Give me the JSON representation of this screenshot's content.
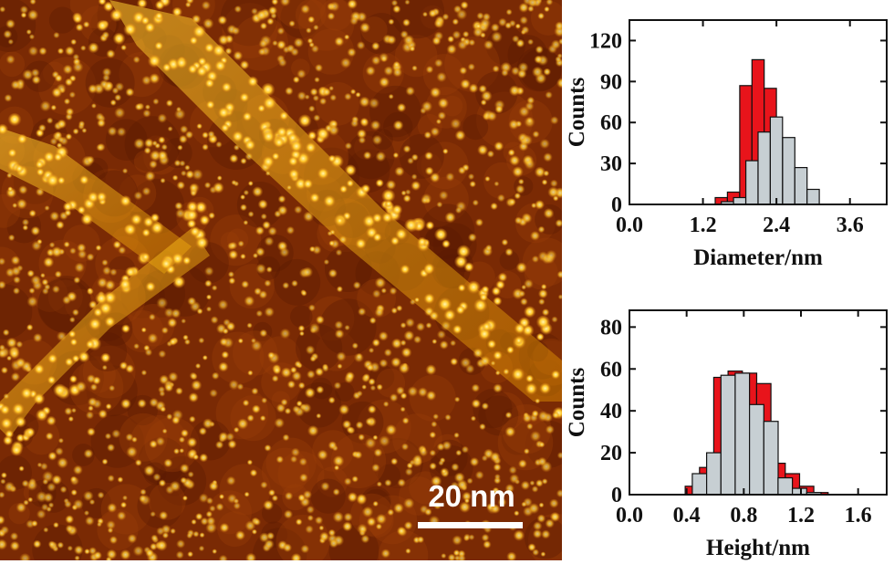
{
  "image": {
    "scale_bar_label": "20 nm",
    "colors": {
      "dark": "#4a1400",
      "mid": "#a0420a",
      "bright": "#ffd23c",
      "highlight": "#fff3a0"
    }
  },
  "chart_data": [
    {
      "type": "bar",
      "xlabel": "Diameter/nm",
      "ylabel": "Counts",
      "xlim": [
        0.0,
        4.2
      ],
      "ylim": [
        0,
        135
      ],
      "xticks": [
        "0.0",
        "1.2",
        "2.4",
        "3.6"
      ],
      "xtick_values": [
        0.0,
        1.2,
        2.4,
        3.6
      ],
      "yticks": [
        "0",
        "30",
        "60",
        "90",
        "120"
      ],
      "ytick_values": [
        0,
        30,
        60,
        90,
        120
      ],
      "bin_width": 0.2,
      "series": [
        {
          "color": "#e8141b",
          "x": [
            1.5,
            1.7,
            1.9,
            2.1,
            2.3,
            2.5
          ],
          "values": [
            5,
            9,
            87,
            106,
            85,
            34
          ]
        },
        {
          "color": "#c7cfd3",
          "x": [
            1.6,
            1.8,
            2.0,
            2.2,
            2.4,
            2.6,
            2.8,
            3.0
          ],
          "values": [
            2,
            5,
            32,
            53,
            64,
            49,
            27,
            11
          ]
        }
      ]
    },
    {
      "type": "bar",
      "xlabel": "Height/nm",
      "ylabel": "Counts",
      "xlim": [
        0.0,
        1.8
      ],
      "ylim": [
        0,
        88
      ],
      "xticks": [
        "0.0",
        "0.4",
        "0.8",
        "1.2",
        "1.6"
      ],
      "xtick_values": [
        0.0,
        0.4,
        0.8,
        1.2,
        1.6
      ],
      "yticks": [
        "0",
        "20",
        "40",
        "60",
        "80"
      ],
      "ytick_values": [
        0,
        20,
        40,
        60,
        80
      ],
      "bin_width": 0.1,
      "series": [
        {
          "color": "#e8141b",
          "x": [
            0.44,
            0.54,
            0.64,
            0.74,
            0.84,
            0.94,
            1.04,
            1.14,
            1.24,
            1.34
          ],
          "values": [
            4,
            13,
            56,
            59,
            58,
            53,
            15,
            10,
            4,
            1
          ]
        },
        {
          "color": "#c7cfd3",
          "x": [
            0.49,
            0.59,
            0.69,
            0.79,
            0.89,
            0.99,
            1.09,
            1.19,
            1.29
          ],
          "values": [
            10,
            20,
            57,
            58,
            43,
            35,
            8,
            3,
            1
          ]
        }
      ]
    }
  ]
}
